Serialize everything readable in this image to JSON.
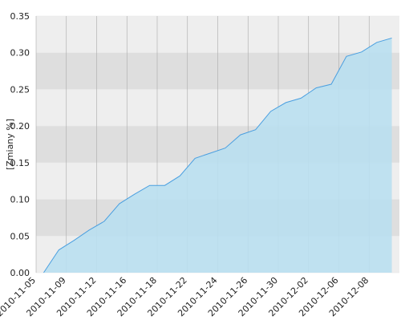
{
  "chart_data": {
    "type": "area",
    "y_label": "[Zmiany %]",
    "categories": [
      "2010-11-05",
      null,
      "2010-11-09",
      null,
      "2010-11-12",
      null,
      "2010-11-16",
      null,
      "2010-11-18",
      null,
      "2010-11-22",
      null,
      "2010-11-24",
      null,
      "2010-11-26",
      null,
      "2010-11-30",
      null,
      "2010-12-02",
      null,
      "2010-12-06",
      null,
      "2010-12-08",
      null
    ],
    "values": [
      0,
      0.031,
      0.044,
      0.058,
      0.07,
      0.094,
      0.107,
      0.119,
      0.119,
      0.132,
      0.156,
      0.163,
      0.17,
      0.188,
      0.195,
      0.22,
      0.232,
      0.238,
      0.252,
      0.257,
      0.295,
      0.301,
      0.314,
      0.32
    ],
    "color": "#4a9fe0",
    "fill": "#b9dff0",
    "ylim": [
      0,
      0.35
    ],
    "yticks": [
      {
        "value": 0,
        "label": "0.00"
      },
      0.05,
      {
        "value": 0.1,
        "label": "0.10"
      },
      0.15,
      {
        "value": 0.2,
        "label": "0.20"
      },
      0.25,
      {
        "value": 0.3,
        "label": "0.30"
      },
      0.35
    ],
    "grid": true
  }
}
